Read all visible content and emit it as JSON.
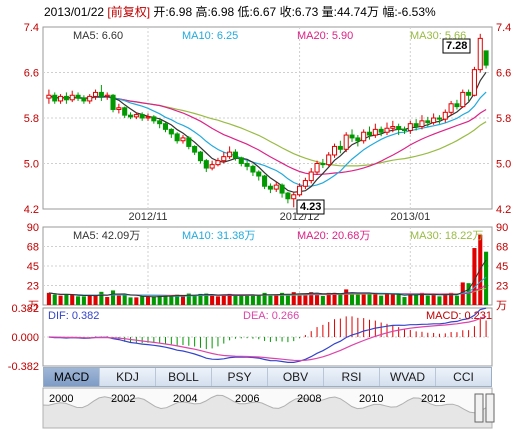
{
  "header": {
    "date": "2013/01/22",
    "adjust_tag": "[前复权]",
    "open_label": "开:",
    "open": "6.98",
    "high_label": "高:",
    "high": "6.98",
    "low_label": "低:",
    "low": "6.67",
    "close_label": "收:",
    "close": "6.73",
    "volume_label": "量:",
    "volume": "44.74万",
    "change_label": "幅:",
    "change": "-6.53%"
  },
  "ma_legend": {
    "ma5": "MA5: 6.60",
    "ma10": "MA10: 6.25",
    "ma20": "MA20: 5.90",
    "ma30": "MA30: 5.66"
  },
  "vol_legend": {
    "ma5": "MA5: 42.09万",
    "ma10": "MA10: 31.38万",
    "ma20": "MA20: 20.68万",
    "ma30": "MA30: 18.22万"
  },
  "macd_legend": {
    "dif": "DIF: 0.382",
    "dea": "DEA: 0.266",
    "macd": "MACD: 0.231"
  },
  "annotations": {
    "high_mark": "7.28",
    "low_mark": "4.23"
  },
  "colors": {
    "up": "#e00000",
    "down": "#009900",
    "ma5": "#333333",
    "ma10": "#22aadd",
    "ma20": "#dd2288",
    "ma30": "#99bb44",
    "dif": "#3344cc",
    "dea": "#dd44aa",
    "grid": "#d0d0d0",
    "axis_text": "#c00000"
  },
  "tabs": [
    "MACD",
    "KDJ",
    "BOLL",
    "PSY",
    "OBV",
    "RSI",
    "WVAD",
    "CCI"
  ],
  "active_tab": "MACD",
  "timeline": {
    "years": [
      "2000",
      "2002",
      "2004",
      "2006",
      "2008",
      "2010",
      "2012"
    ]
  },
  "chart_data": {
    "type": "candlestick",
    "price_axis": {
      "ticks": [
        "7.4",
        "6.6",
        "5.8",
        "5.0",
        "4.2"
      ],
      "ylim": [
        4.2,
        7.4
      ]
    },
    "x_ticks": [
      "2012/11",
      "2012/12",
      "2013/01"
    ],
    "x_tick_index": [
      17,
      43,
      62
    ],
    "candles": [
      [
        6.15,
        6.2,
        6.05,
        6.3
      ],
      [
        6.2,
        6.1,
        6.05,
        6.25
      ],
      [
        6.1,
        6.18,
        6.05,
        6.22
      ],
      [
        6.18,
        6.12,
        6.05,
        6.25
      ],
      [
        6.12,
        6.2,
        6.08,
        6.28
      ],
      [
        6.2,
        6.15,
        6.1,
        6.25
      ],
      [
        6.15,
        6.1,
        6.05,
        6.2
      ],
      [
        6.1,
        6.18,
        6.05,
        6.22
      ],
      [
        6.18,
        6.25,
        6.12,
        6.3
      ],
      [
        6.25,
        6.18,
        6.1,
        6.38
      ],
      [
        6.18,
        6.2,
        6.12,
        6.25
      ],
      [
        6.2,
        5.95,
        5.9,
        6.22
      ],
      [
        5.95,
        5.98,
        5.88,
        6.05
      ],
      [
        5.98,
        5.85,
        5.8,
        6.0
      ],
      [
        5.85,
        5.82,
        5.78,
        5.9
      ],
      [
        5.82,
        5.86,
        5.78,
        5.9
      ],
      [
        5.86,
        5.8,
        5.75,
        5.9
      ],
      [
        5.8,
        5.82,
        5.75,
        5.88
      ],
      [
        5.82,
        5.75,
        5.7,
        5.85
      ],
      [
        5.75,
        5.7,
        5.62,
        5.78
      ],
      [
        5.7,
        5.6,
        5.55,
        5.72
      ],
      [
        5.6,
        5.52,
        5.45,
        5.62
      ],
      [
        5.52,
        5.4,
        5.35,
        5.55
      ],
      [
        5.4,
        5.45,
        5.35,
        5.5
      ],
      [
        5.45,
        5.3,
        5.25,
        5.48
      ],
      [
        5.3,
        5.2,
        5.15,
        5.32
      ],
      [
        5.2,
        5.05,
        5.0,
        5.22
      ],
      [
        5.05,
        4.92,
        4.85,
        5.08
      ],
      [
        4.92,
        4.98,
        4.88,
        5.05
      ],
      [
        4.98,
        5.05,
        4.95,
        5.1
      ],
      [
        5.05,
        5.12,
        5.0,
        5.2
      ],
      [
        5.12,
        5.2,
        5.08,
        5.3
      ],
      [
        5.2,
        5.1,
        5.05,
        5.25
      ],
      [
        5.1,
        5.0,
        4.95,
        5.12
      ],
      [
        5.0,
        4.95,
        4.88,
        5.05
      ],
      [
        4.95,
        4.85,
        4.78,
        4.98
      ],
      [
        4.85,
        4.78,
        4.7,
        4.88
      ],
      [
        4.78,
        4.6,
        4.55,
        4.8
      ],
      [
        4.6,
        4.55,
        4.48,
        4.65
      ],
      [
        4.55,
        4.62,
        4.5,
        4.68
      ],
      [
        4.62,
        4.48,
        4.4,
        4.65
      ],
      [
        4.48,
        4.38,
        4.3,
        4.5
      ],
      [
        4.38,
        4.45,
        4.23,
        4.5
      ],
      [
        4.45,
        4.6,
        4.42,
        4.65
      ],
      [
        4.6,
        4.7,
        4.55,
        4.75
      ],
      [
        4.7,
        4.85,
        4.65,
        4.92
      ],
      [
        4.85,
        5.0,
        4.8,
        5.05
      ],
      [
        5.0,
        4.98,
        4.92,
        5.08
      ],
      [
        4.98,
        5.15,
        4.95,
        5.2
      ],
      [
        5.15,
        5.3,
        5.1,
        5.35
      ],
      [
        5.3,
        5.25,
        5.18,
        5.4
      ],
      [
        5.25,
        5.5,
        5.2,
        5.55
      ],
      [
        5.5,
        5.45,
        5.38,
        5.6
      ],
      [
        5.45,
        5.4,
        5.3,
        5.5
      ],
      [
        5.4,
        5.55,
        5.35,
        5.6
      ],
      [
        5.55,
        5.5,
        5.42,
        5.65
      ],
      [
        5.5,
        5.6,
        5.45,
        5.7
      ],
      [
        5.6,
        5.55,
        5.48,
        5.65
      ],
      [
        5.55,
        5.62,
        5.5,
        5.72
      ],
      [
        5.62,
        5.65,
        5.55,
        5.75
      ],
      [
        5.65,
        5.6,
        5.5,
        5.7
      ],
      [
        5.6,
        5.58,
        5.52,
        5.65
      ],
      [
        5.58,
        5.7,
        5.52,
        5.75
      ],
      [
        5.7,
        5.65,
        5.58,
        5.78
      ],
      [
        5.65,
        5.75,
        5.6,
        5.85
      ],
      [
        5.75,
        5.72,
        5.65,
        5.82
      ],
      [
        5.72,
        5.8,
        5.68,
        5.88
      ],
      [
        5.8,
        5.78,
        5.7,
        5.85
      ],
      [
        5.78,
        5.9,
        5.72,
        5.95
      ],
      [
        5.9,
        6.05,
        5.85,
        6.1
      ],
      [
        6.05,
        6.0,
        5.95,
        6.12
      ],
      [
        6.0,
        6.25,
        5.98,
        6.3
      ],
      [
        6.25,
        6.2,
        6.1,
        6.3
      ],
      [
        6.2,
        6.65,
        6.18,
        6.7
      ],
      [
        6.65,
        7.2,
        6.6,
        7.28
      ],
      [
        6.98,
        6.73,
        6.67,
        6.98
      ]
    ],
    "volume_axis": {
      "ticks": [
        "90",
        "68",
        "45",
        "23",
        "万"
      ],
      "ylim": [
        0,
        90
      ]
    },
    "macd_axis": {
      "ticks": [
        "0.382",
        "0.000",
        "-0.382"
      ],
      "ylim": [
        -0.382,
        0.382
      ]
    }
  }
}
